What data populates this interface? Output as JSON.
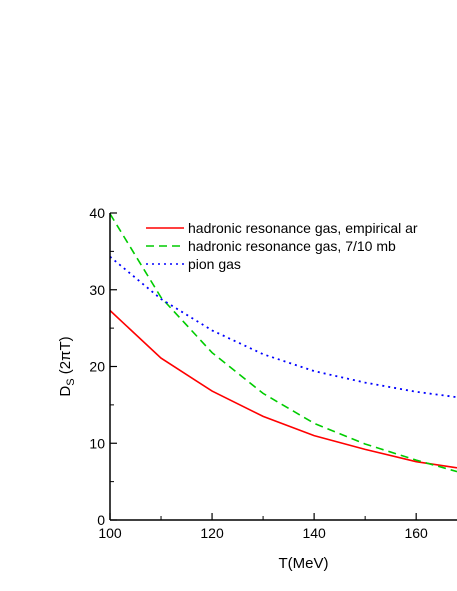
{
  "chart_data": {
    "type": "line",
    "xlabel": "T(MeV)",
    "ylabel_main": "D",
    "ylabel_sub": "S",
    "ylabel_rest": " (2πT)",
    "xlim": [
      100,
      168
    ],
    "ylim": [
      0,
      40
    ],
    "x_ticks": [
      100,
      120,
      140,
      160
    ],
    "y_ticks": [
      0,
      10,
      20,
      30,
      40
    ],
    "grid": false,
    "legend_position": "top-right",
    "series": [
      {
        "name": "hadronic resonance gas, empirical ar",
        "color": "#ff0000",
        "dash": "solid",
        "x": [
          100,
          110,
          120,
          130,
          140,
          150,
          160,
          168
        ],
        "y": [
          27.3,
          21.1,
          16.8,
          13.5,
          11.0,
          9.2,
          7.6,
          6.8
        ]
      },
      {
        "name": "hadronic resonance gas, 7/10 mb",
        "color": "#00cc00",
        "dash": "dashed",
        "x": [
          100,
          110,
          120,
          130,
          140,
          150,
          160,
          168
        ],
        "y": [
          39.9,
          29.0,
          21.8,
          16.5,
          12.6,
          9.9,
          7.8,
          6.3
        ]
      },
      {
        "name": "pion gas",
        "color": "#0000ff",
        "dash": "dotted",
        "x": [
          100,
          110,
          120,
          130,
          140,
          150,
          160,
          168
        ],
        "y": [
          34.3,
          28.8,
          24.7,
          21.6,
          19.4,
          17.9,
          16.7,
          16.0
        ]
      }
    ]
  }
}
